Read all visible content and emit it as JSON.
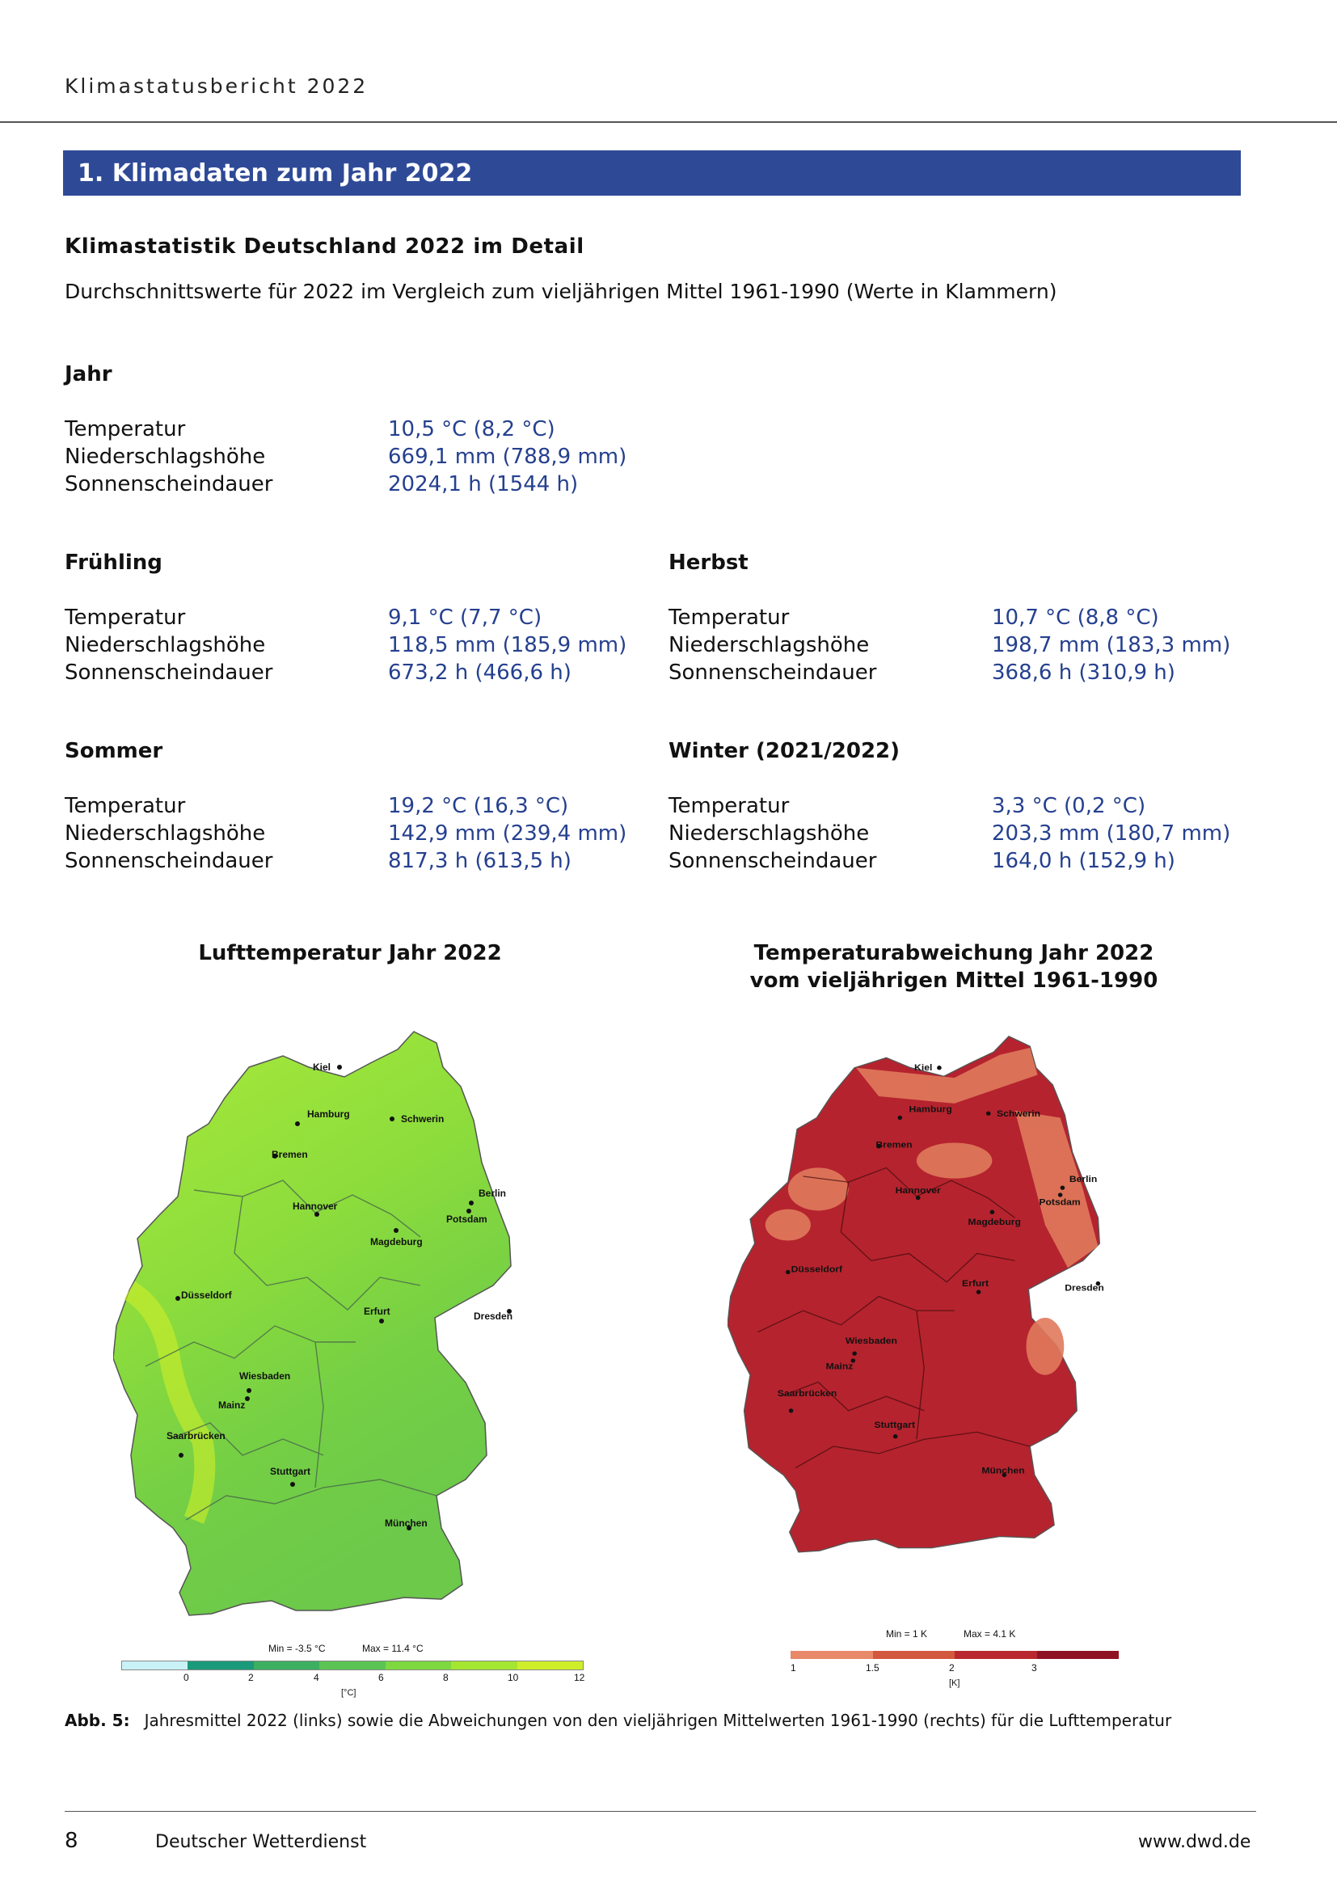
{
  "header": {
    "title": "Klimastatusbericht 2022"
  },
  "banner": {
    "title": "1. Klimadaten zum Jahr 2022"
  },
  "subtitle": "Klimastatistik Deutschland 2022 im Detail",
  "intro": "Durchschnittswerte für 2022 im Vergleich zum vieljährigen Mittel 1961-1990 (Werte in Klammern)",
  "labels": {
    "temp": "Temperatur",
    "precip": "Niederschlagshöhe",
    "sun": "Sonnenscheindauer"
  },
  "sections": {
    "jahr": {
      "title": "Jahr",
      "temp": "10,5 °C (8,2 °C)",
      "precip": "669,1 mm (788,9 mm)",
      "sun": "2024,1 h (1544 h)"
    },
    "fruehling": {
      "title": "Frühling",
      "temp": "9,1 °C (7,7 °C)",
      "precip": "118,5 mm (185,9 mm)",
      "sun": "673,2 h (466,6 h)"
    },
    "herbst": {
      "title": "Herbst",
      "temp": "10,7 °C (8,8 °C)",
      "precip": "198,7 mm (183,3 mm)",
      "sun": "368,6 h (310,9 h)"
    },
    "sommer": {
      "title": "Sommer",
      "temp": "19,2 °C (16,3 °C)",
      "precip": "142,9 mm (239,4 mm)",
      "sun": "817,3 h (613,5 h)"
    },
    "winter": {
      "title": "Winter (2021/2022)",
      "temp": "3,3 °C (0,2 °C)",
      "precip": "203,3 mm (180,7 mm)",
      "sun": "164,0 h (152,9 h)"
    }
  },
  "maps": {
    "left": {
      "title": "Lufttemperatur Jahr 2022",
      "min_max": {
        "min": "Min = -3.5 °C",
        "max": "Max = 11.4 °C"
      },
      "ticks": [
        "0",
        "2",
        "4",
        "6",
        "8",
        "10",
        "12"
      ],
      "unit": "[°C]",
      "colors": [
        "#c8f2f6",
        "#1a9a7a",
        "#3cb060",
        "#5cc455",
        "#7ed840",
        "#a4e630",
        "#cfee2a"
      ]
    },
    "right": {
      "title_line1": "Temperaturabweichung Jahr 2022",
      "title_line2": "vom vieljährigen Mittel 1961-1990",
      "min_max": {
        "min": "Min = 1 K",
        "max": "Max = 4.1 K"
      },
      "ticks": [
        "1",
        "1.5",
        "2",
        "3"
      ],
      "unit": "[K]",
      "colors": [
        "#e8896a",
        "#d2583e",
        "#b8282e",
        "#8e1424"
      ]
    },
    "cities": {
      "kiel": "Kiel",
      "hamburg": "Hamburg",
      "schwerin": "Schwerin",
      "bremen": "Bremen",
      "berlin": "Berlin",
      "potsdam": "Potsdam",
      "hannover": "Hannover",
      "magdeburg": "Magdeburg",
      "duesseldorf": "Düsseldorf",
      "erfurt": "Erfurt",
      "dresden": "Dresden",
      "wiesbaden": "Wiesbaden",
      "mainz": "Mainz",
      "saarbruecken": "Saarbrücken",
      "stuttgart": "Stuttgart",
      "muenchen": "München"
    }
  },
  "caption": {
    "label": "Abb. 5:",
    "text": "Jahresmittel 2022 (links) sowie die Abweichungen von den vieljährigen Mittelwerten 1961-1990 (rechts) für die Lufttemperatur"
  },
  "footer": {
    "page": "8",
    "org": "Deutscher Wetterdienst",
    "url": "www.dwd.de"
  }
}
